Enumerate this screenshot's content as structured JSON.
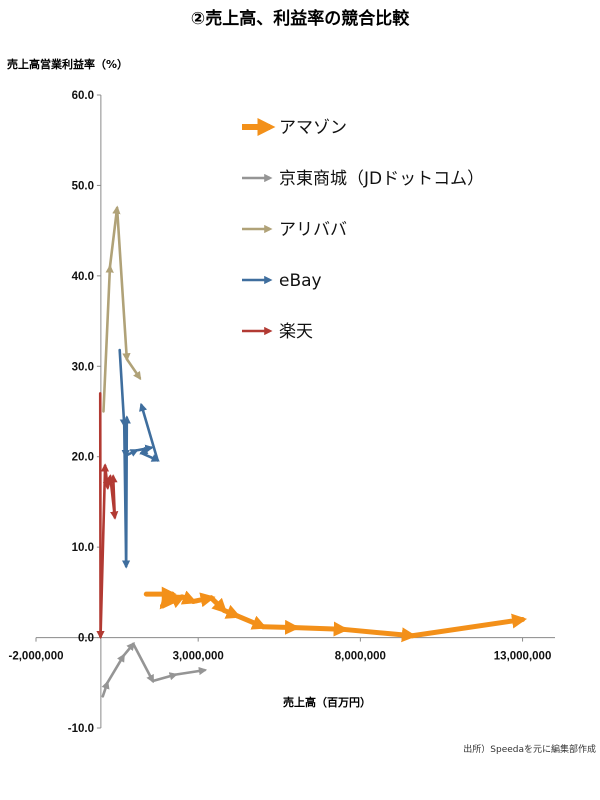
{
  "chart_data": {
    "type": "line",
    "title": "②売上高、利益率の競合比較",
    "ylabel": "売上高営業利益率（%）",
    "xlabel": "売上高（百万円）",
    "source": "出所）Speedaを元に編集部作成",
    "xlim": [
      -2000000,
      14000000
    ],
    "ylim": [
      -10,
      60
    ],
    "x_ticks": [
      -2000000,
      3000000,
      8000000,
      13000000
    ],
    "x_tick_labels": [
      "-2,000,000",
      "3,000,000",
      "8,000,000",
      "13,000,000"
    ],
    "y_ticks": [
      60,
      50,
      40,
      30,
      20,
      10,
      0,
      -10
    ],
    "y_tick_labels": [
      "60.0",
      "50.0",
      "40.0",
      "30.0",
      "20.0",
      "10.0",
      "0.0",
      "-10.0"
    ],
    "grid": false,
    "legend_position": "top-right",
    "series": [
      {
        "name": "アマゾン",
        "color": "#f39019",
        "points": [
          [
            1400000,
            4.8
          ],
          [
            2200000,
            4.8
          ],
          [
            1900000,
            3.5
          ],
          [
            2500000,
            4.5
          ],
          [
            2850000,
            4.0
          ],
          [
            3400000,
            4.4
          ],
          [
            3800000,
            3.0
          ],
          [
            4200000,
            2.4
          ],
          [
            5000000,
            1.2
          ],
          [
            6000000,
            1.1
          ],
          [
            7500000,
            0.9
          ],
          [
            9600000,
            0.2
          ],
          [
            13000000,
            2.0
          ]
        ]
      },
      {
        "name": "京東商城（JDドットコム）",
        "color": "#959595",
        "points": [
          [
            60000,
            -6.5
          ],
          [
            200000,
            -5.0
          ],
          [
            700000,
            -2.0
          ],
          [
            1000000,
            -0.7
          ],
          [
            1600000,
            -4.8
          ],
          [
            2300000,
            -4.1
          ],
          [
            3200000,
            -3.6
          ]
        ]
      },
      {
        "name": "アリババ",
        "color": "#b0a278",
        "points": [
          [
            80000,
            25.0
          ],
          [
            280000,
            41.0
          ],
          [
            500000,
            47.5
          ],
          [
            800000,
            30.8
          ],
          [
            1200000,
            28.7
          ]
        ]
      },
      {
        "name": "eBay",
        "color": "#3f6e9e",
        "points": [
          [
            580000,
            31.8
          ],
          [
            720000,
            23.5
          ],
          [
            780000,
            7.9
          ],
          [
            800000,
            24.3
          ],
          [
            760000,
            20.1
          ],
          [
            1100000,
            20.7
          ],
          [
            1550000,
            21.0
          ],
          [
            1250000,
            20.4
          ],
          [
            1750000,
            19.6
          ],
          [
            1250000,
            25.7
          ]
        ]
      },
      {
        "name": "楽天",
        "color": "#b23a33",
        "points": [
          [
            -20000,
            27.0
          ],
          [
            -10000,
            0.1
          ],
          [
            130000,
            19.0
          ],
          [
            210000,
            16.6
          ],
          [
            290000,
            17.8
          ],
          [
            430000,
            13.3
          ],
          [
            380000,
            17.8
          ]
        ]
      }
    ]
  }
}
